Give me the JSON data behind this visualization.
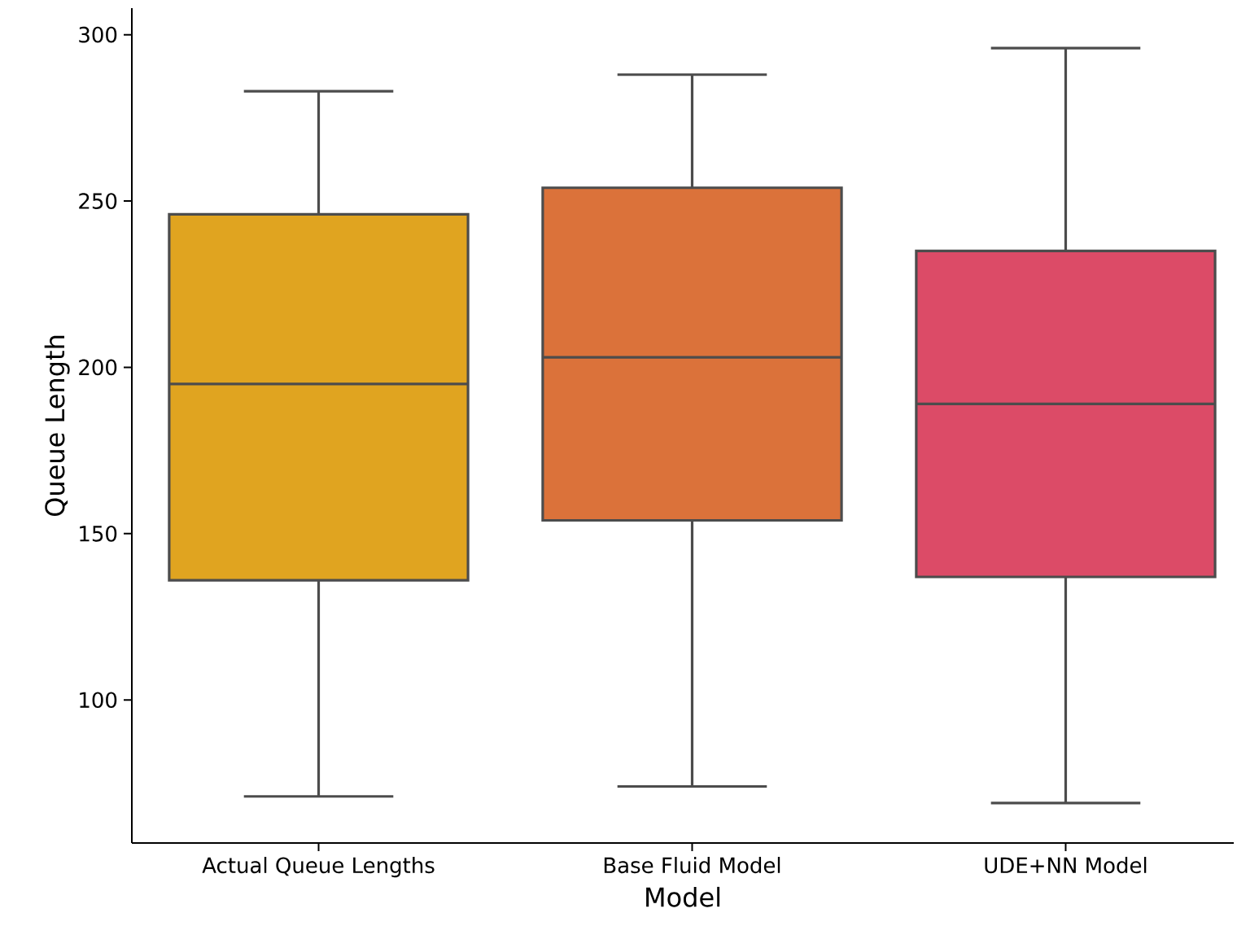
{
  "chart_data": {
    "type": "box",
    "xlabel": "Model",
    "ylabel": "Queue Length",
    "categories": [
      "Actual Queue Lengths",
      "Base Fluid Model",
      "UDE+NN Model"
    ],
    "colors": [
      "#e0a420",
      "#db723a",
      "#dc4b67"
    ],
    "boxes": [
      {
        "low": 71,
        "q1": 136,
        "median": 195,
        "q3": 246,
        "high": 283
      },
      {
        "low": 74,
        "q1": 154,
        "median": 203,
        "q3": 254,
        "high": 288
      },
      {
        "low": 69,
        "q1": 137,
        "median": 189,
        "q3": 235,
        "high": 296
      }
    ],
    "ylim": [
      57,
      308
    ],
    "yticks": [
      100,
      150,
      200,
      250,
      300
    ]
  }
}
